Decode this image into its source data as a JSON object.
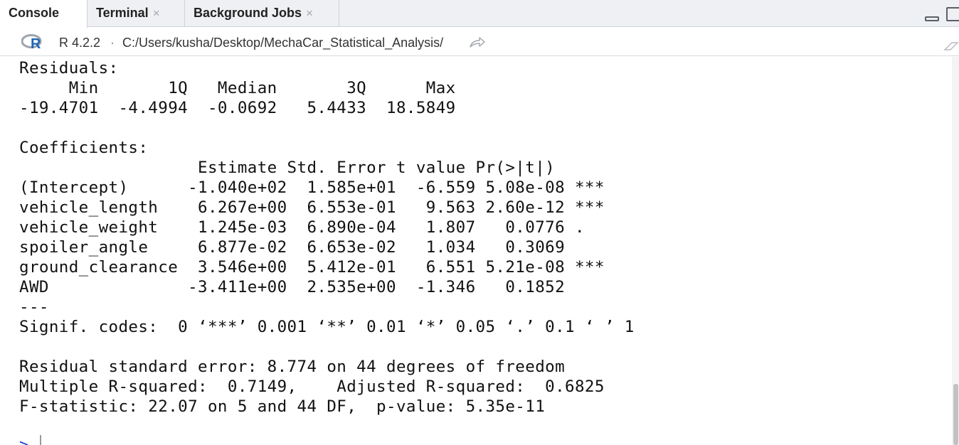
{
  "tabs": [
    {
      "label": "Console",
      "active": true,
      "closable": false
    },
    {
      "label": "Terminal",
      "active": false,
      "closable": true
    },
    {
      "label": "Background Jobs",
      "active": false,
      "closable": true
    }
  ],
  "close_glyph": "×",
  "pathbar": {
    "r_version": "R 4.2.2",
    "separator": "·",
    "path": "C:/Users/kusha/Desktop/MechaCar_Statistical_Analysis/",
    "icons": [
      "r-logo-icon",
      "goto-directory-icon",
      "clear-console-icon"
    ]
  },
  "console": {
    "lines": [
      "Residuals:",
      "     Min       1Q   Median       3Q      Max ",
      "-19.4701  -4.4994  -0.0692   5.4433  18.5849 ",
      "",
      "Coefficients:",
      "                  Estimate Std. Error t value Pr(>|t|)    ",
      "(Intercept)      -1.040e+02  1.585e+01  -6.559 5.08e-08 ***",
      "vehicle_length    6.267e+00  6.553e-01   9.563 2.60e-12 ***",
      "vehicle_weight    1.245e-03  6.890e-04   1.807   0.0776 .  ",
      "spoiler_angle     6.877e-02  6.653e-02   1.034   0.3069    ",
      "ground_clearance  3.546e+00  5.412e-01   6.551 5.21e-08 ***",
      "AWD              -3.411e+00  2.535e+00  -1.346   0.1852    ",
      "---",
      "Signif. codes:  0 ‘***’ 0.001 ‘**’ 0.01 ‘*’ 0.05 ‘.’ 0.1 ‘ ’ 1",
      "",
      "Residual standard error: 8.774 on 44 degrees of freedom",
      "Multiple R-squared:  0.7149,\tAdjusted R-squared:  0.6825 ",
      "F-statistic: 22.07 on 5 and 44 DF,  p-value: 5.35e-11",
      ""
    ],
    "prompt": ">"
  },
  "colors": {
    "tabbar_bg": "#eef0f3",
    "prompt": "#1a3fd1",
    "r_logo_blue": "#2165b6",
    "r_logo_ring": "#9ea4ad"
  }
}
